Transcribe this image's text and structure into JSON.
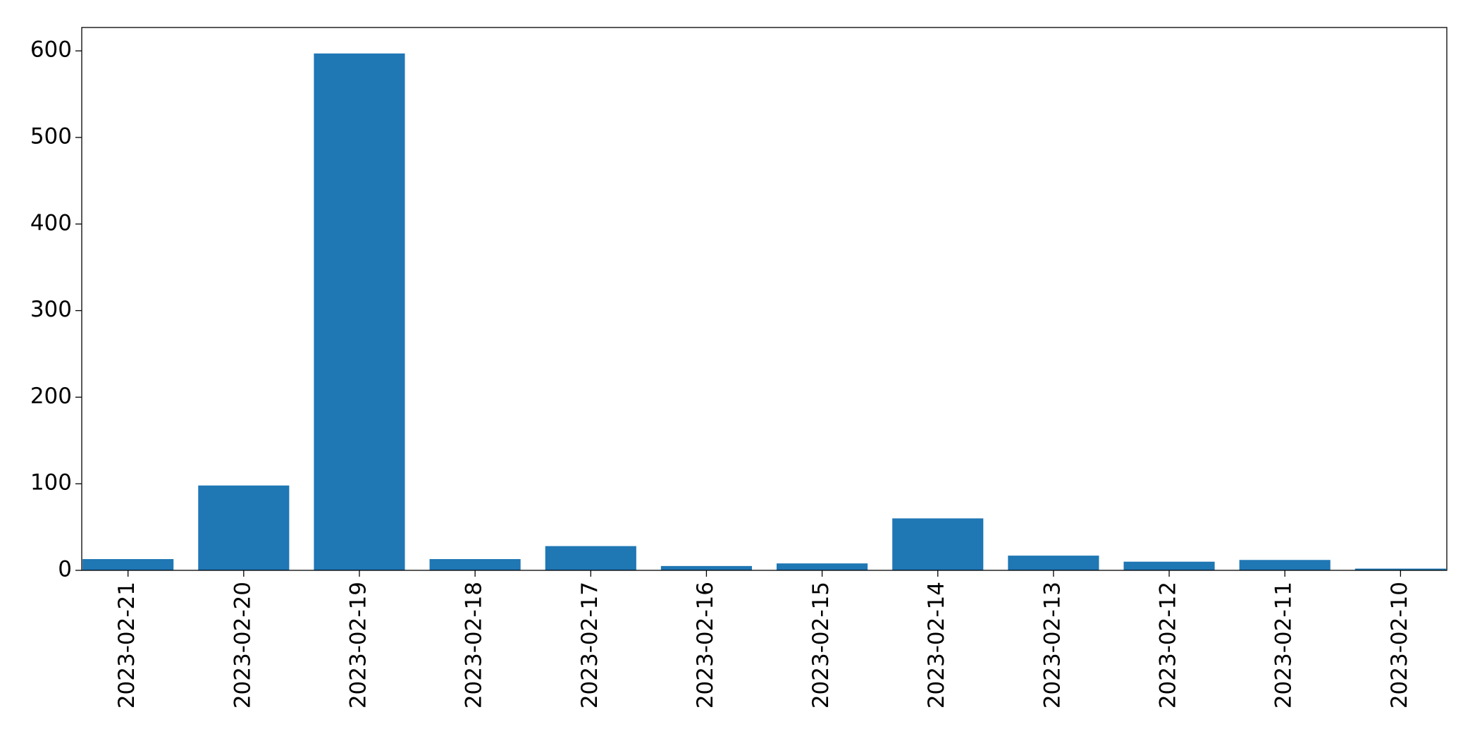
{
  "chart_data": {
    "type": "bar",
    "categories": [
      "2023-02-21",
      "2023-02-20",
      "2023-02-19",
      "2023-02-18",
      "2023-02-17",
      "2023-02-16",
      "2023-02-15",
      "2023-02-14",
      "2023-02-13",
      "2023-02-12",
      "2023-02-11",
      "2023-02-10"
    ],
    "values": [
      13,
      98,
      597,
      13,
      28,
      5,
      8,
      60,
      17,
      10,
      12,
      2
    ],
    "color": "#1f77b4",
    "ylim": [
      0,
      627
    ],
    "yticks": [
      0,
      100,
      200,
      300,
      400,
      500,
      600
    ],
    "grid": false
  }
}
